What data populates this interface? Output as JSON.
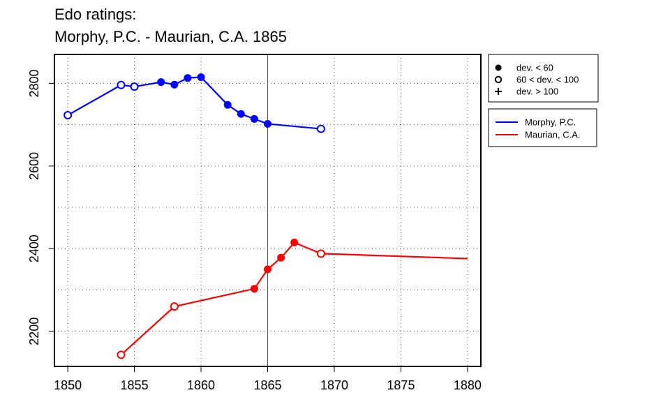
{
  "chart_data": {
    "type": "line",
    "title": "Edo ratings:",
    "subtitle": "Morphy, P.C. - Maurian, C.A. 1865",
    "xlabel": "",
    "ylabel": "",
    "xlim": [
      1849,
      1881
    ],
    "ylim": [
      2115,
      2870
    ],
    "x_ticks": [
      1850,
      1855,
      1860,
      1865,
      1870,
      1875,
      1880
    ],
    "y_ticks": [
      2200,
      2400,
      2600,
      2800
    ],
    "grid": true,
    "reference_line_x": 1865,
    "series": [
      {
        "name": "Morphy, P.C.",
        "color": "#0000ff",
        "points": [
          {
            "x": 1850,
            "y": 2723,
            "marker": "open"
          },
          {
            "x": 1854,
            "y": 2796,
            "marker": "open"
          },
          {
            "x": 1855,
            "y": 2792,
            "marker": "open"
          },
          {
            "x": 1857,
            "y": 2803,
            "marker": "filled"
          },
          {
            "x": 1858,
            "y": 2797,
            "marker": "filled"
          },
          {
            "x": 1859,
            "y": 2813,
            "marker": "filled"
          },
          {
            "x": 1860,
            "y": 2815,
            "marker": "filled"
          },
          {
            "x": 1862,
            "y": 2748,
            "marker": "filled"
          },
          {
            "x": 1863,
            "y": 2726,
            "marker": "filled"
          },
          {
            "x": 1864,
            "y": 2714,
            "marker": "filled"
          },
          {
            "x": 1865,
            "y": 2702,
            "marker": "filled"
          },
          {
            "x": 1869,
            "y": 2690,
            "marker": "open"
          }
        ]
      },
      {
        "name": "Maurian, C.A.",
        "color": "#ff0000",
        "points": [
          {
            "x": 1854,
            "y": 2143,
            "marker": "open"
          },
          {
            "x": 1858,
            "y": 2260,
            "marker": "open"
          },
          {
            "x": 1864,
            "y": 2303,
            "marker": "filled"
          },
          {
            "x": 1865,
            "y": 2350,
            "marker": "filled"
          },
          {
            "x": 1866,
            "y": 2378,
            "marker": "filled"
          },
          {
            "x": 1867,
            "y": 2415,
            "marker": "filled"
          },
          {
            "x": 1869,
            "y": 2388,
            "marker": "open"
          },
          {
            "x": 1880,
            "y": 2376,
            "marker": "none"
          }
        ]
      }
    ],
    "marker_legend": [
      {
        "symbol": "filled",
        "label": "dev. < 60"
      },
      {
        "symbol": "open",
        "label": "60 < dev. < 100"
      },
      {
        "symbol": "plus",
        "label": "dev. > 100"
      }
    ],
    "legend_position": "right"
  }
}
